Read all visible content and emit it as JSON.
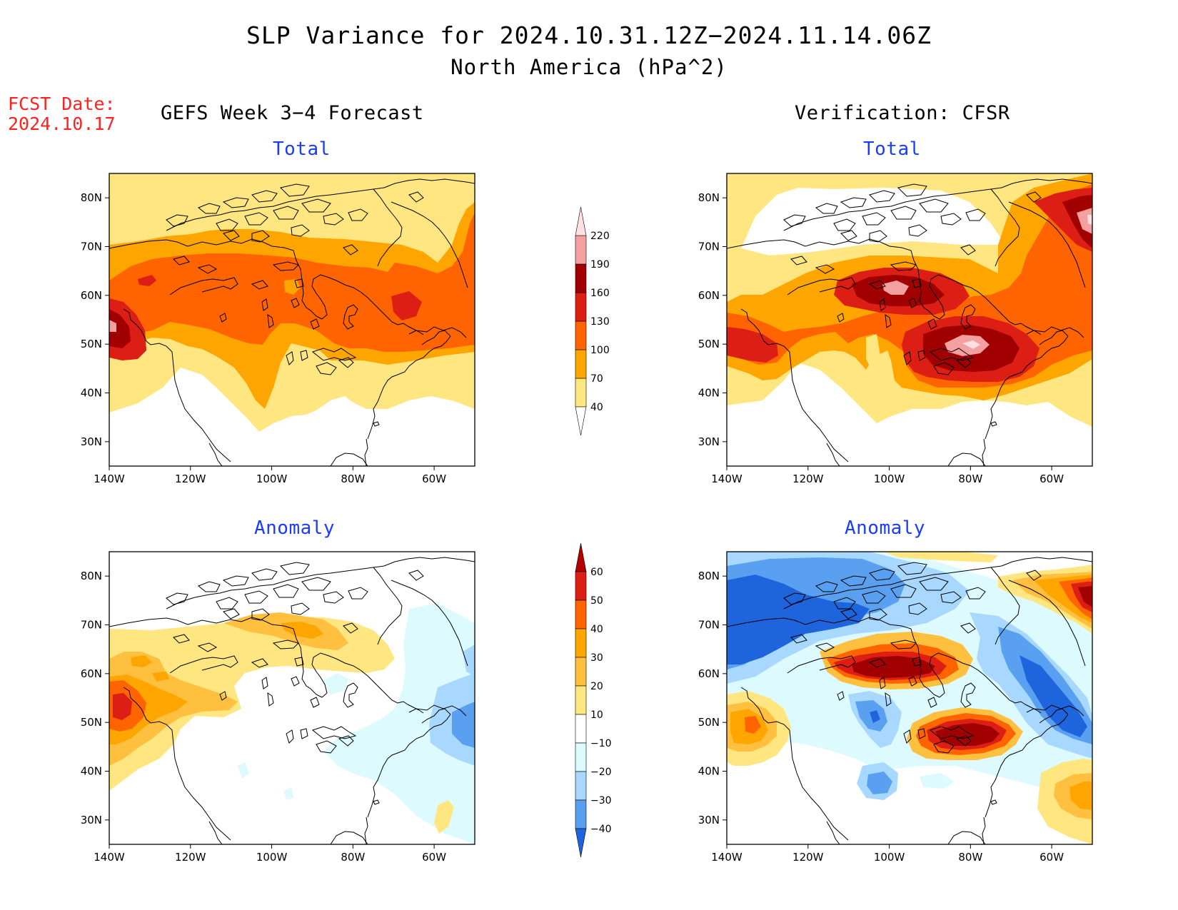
{
  "title": "SLP Variance for 2024.10.31.12Z−2024.11.14.06Z",
  "subtitle": "North America (hPa^2)",
  "fcst_label": "FCST Date:",
  "fcst_date": "2024.10.17",
  "left_column_title": "GEFS Week 3−4 Forecast",
  "right_column_title": "Verification: CFSR",
  "panel_titles": {
    "forecast_total": "Total",
    "verification_total": "Total",
    "forecast_anomaly": "Anomaly",
    "verification_anomaly": "Anomaly"
  },
  "axes": {
    "lat_ticks": [
      "80N",
      "70N",
      "60N",
      "50N",
      "40N",
      "30N"
    ],
    "lat_values": [
      80,
      70,
      60,
      50,
      40,
      30
    ],
    "lon_ticks": [
      "140W",
      "120W",
      "100W",
      "80W",
      "60W"
    ],
    "lon_values": [
      -140,
      -120,
      -100,
      -80,
      -60
    ],
    "lon_range": [
      -140,
      -50
    ],
    "lat_range": [
      25,
      85
    ]
  },
  "colorbars": {
    "total": {
      "levels": [
        "40",
        "70",
        "100",
        "130",
        "160",
        "190",
        "220"
      ],
      "colors": [
        "#ffe680",
        "#ffa500",
        "#ff6400",
        "#dc1e14",
        "#a00000",
        "#f5a0a0",
        "#ffe0e0"
      ]
    },
    "anomaly": {
      "levels": [
        "60",
        "50",
        "40",
        "30",
        "20",
        "10",
        "−10",
        "−20",
        "−30",
        "−40"
      ],
      "colors": [
        "#b40000",
        "#dc1e14",
        "#ff6400",
        "#ffa500",
        "#ffc040",
        "#ffe680",
        "#ffffff",
        "#ddfaff",
        "#a8d8ff",
        "#5aa0f0",
        "#1e64dc"
      ]
    }
  }
}
